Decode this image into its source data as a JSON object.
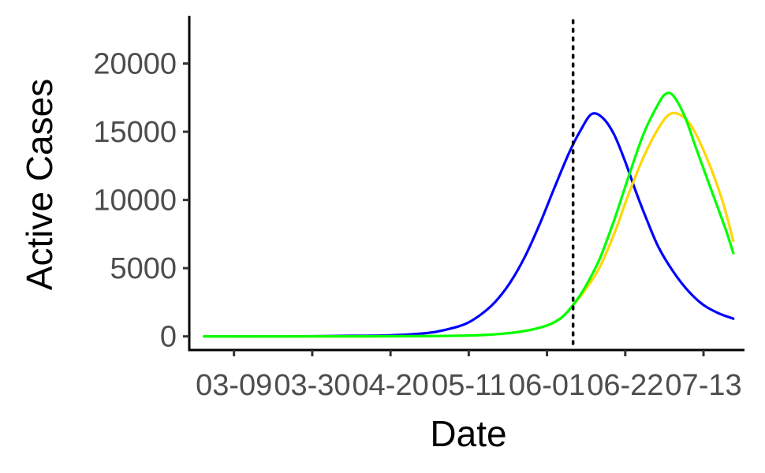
{
  "chart_data": {
    "type": "line",
    "title": "",
    "xlabel": "Date",
    "ylabel": "Active Cases",
    "x_ticks": [
      "03-09",
      "03-30",
      "04-20",
      "05-11",
      "06-01",
      "06-22",
      "07-13"
    ],
    "y_ticks": [
      0,
      5000,
      10000,
      15000,
      20000
    ],
    "xlim": [
      "2020-02-26",
      "2020-07-24"
    ],
    "ylim": [
      -1000,
      23500
    ],
    "grid": false,
    "legend": "none",
    "vline": {
      "x": "2020-06-08",
      "style": "dotted",
      "color": "#000000"
    },
    "series": [
      {
        "color": "#0000ff",
        "x": [
          "2020-03-01",
          "2020-03-22",
          "2020-04-05",
          "2020-04-20",
          "2020-04-30",
          "2020-05-05",
          "2020-05-10",
          "2020-05-14",
          "2020-05-18",
          "2020-05-22",
          "2020-05-26",
          "2020-05-30",
          "2020-06-03",
          "2020-06-07",
          "2020-06-10",
          "2020-06-13",
          "2020-06-16",
          "2020-06-19",
          "2020-06-22",
          "2020-06-25",
          "2020-06-28",
          "2020-07-01",
          "2020-07-05",
          "2020-07-09",
          "2020-07-13",
          "2020-07-17",
          "2020-07-21"
        ],
        "values": [
          0,
          0,
          30,
          80,
          250,
          500,
          900,
          1550,
          2500,
          3900,
          5800,
          8200,
          10900,
          13500,
          15100,
          16300,
          16000,
          14800,
          12800,
          10500,
          8400,
          6500,
          4700,
          3300,
          2300,
          1700,
          1300
        ]
      },
      {
        "color": "#ffd700",
        "x": [
          "2020-03-01",
          "2020-04-01",
          "2020-05-01",
          "2020-05-15",
          "2020-05-25",
          "2020-06-01",
          "2020-06-05",
          "2020-06-08",
          "2020-06-11",
          "2020-06-15",
          "2020-06-19",
          "2020-06-23",
          "2020-06-27",
          "2020-07-01",
          "2020-07-04",
          "2020-07-07",
          "2020-07-10",
          "2020-07-14",
          "2020-07-18",
          "2020-07-21"
        ],
        "values": [
          0,
          0,
          20,
          100,
          350,
          800,
          1400,
          2300,
          3300,
          5000,
          7500,
          10500,
          13200,
          15300,
          16300,
          16200,
          15300,
          13000,
          10000,
          7000
        ]
      },
      {
        "color": "#00ff00",
        "x": [
          "2020-03-01",
          "2020-04-01",
          "2020-05-01",
          "2020-05-15",
          "2020-05-25",
          "2020-06-01",
          "2020-06-05",
          "2020-06-08",
          "2020-06-11",
          "2020-06-15",
          "2020-06-19",
          "2020-06-23",
          "2020-06-27",
          "2020-07-01",
          "2020-07-03",
          "2020-07-05",
          "2020-07-08",
          "2020-07-11",
          "2020-07-15",
          "2020-07-19",
          "2020-07-21"
        ],
        "values": [
          0,
          0,
          20,
          100,
          350,
          800,
          1400,
          2300,
          3500,
          5600,
          8500,
          11800,
          14900,
          17100,
          17800,
          17600,
          16100,
          13800,
          10800,
          7800,
          6100
        ]
      }
    ]
  }
}
